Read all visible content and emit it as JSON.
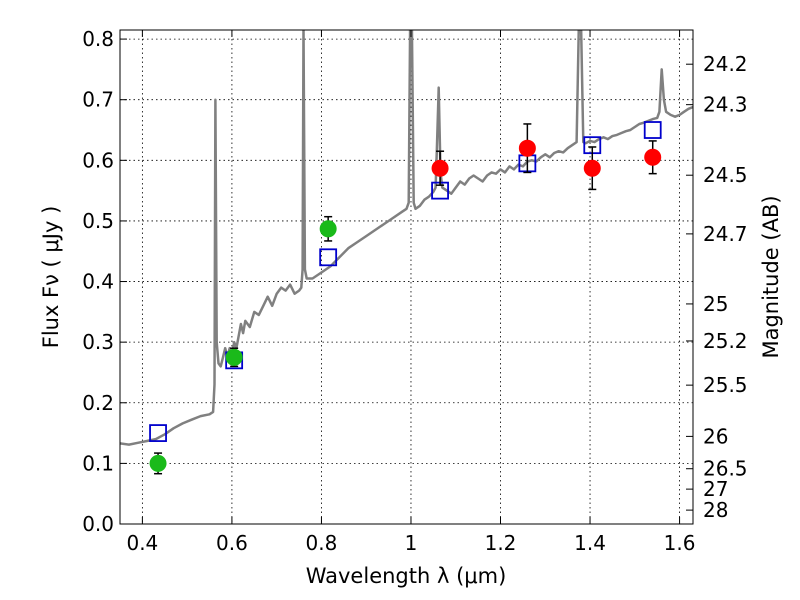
{
  "chart_data": {
    "type": "scatter",
    "xlabel": "Wavelength  λ (μm)",
    "ylabel": "Flux  Fν  ( μJy )",
    "ylabel_right": "Magnitude (AB)",
    "xlim": [
      0.35,
      1.63
    ],
    "ylim": [
      0.0,
      0.815
    ],
    "grid": true,
    "x_ticks": [
      {
        "value": 0.4,
        "label": "0.4"
      },
      {
        "value": 0.6,
        "label": "0.6"
      },
      {
        "value": 0.8,
        "label": "0.8"
      },
      {
        "value": 1.0,
        "label": "1"
      },
      {
        "value": 1.2,
        "label": "1.2"
      },
      {
        "value": 1.4,
        "label": "1.4"
      },
      {
        "value": 1.6,
        "label": "1.6"
      }
    ],
    "y_ticks": [
      {
        "value": 0.0,
        "label": "0.0"
      },
      {
        "value": 0.1,
        "label": "0.1"
      },
      {
        "value": 0.2,
        "label": "0.2"
      },
      {
        "value": 0.3,
        "label": "0.3"
      },
      {
        "value": 0.4,
        "label": "0.4"
      },
      {
        "value": 0.5,
        "label": "0.5"
      },
      {
        "value": 0.6,
        "label": "0.6"
      },
      {
        "value": 0.7,
        "label": "0.7"
      },
      {
        "value": 0.8,
        "label": "0.8"
      }
    ],
    "right_ticks": [
      {
        "mag": 24.2,
        "label": "24.2"
      },
      {
        "mag": 24.3,
        "label": "24.3"
      },
      {
        "mag": 24.5,
        "label": "24.5"
      },
      {
        "mag": 24.7,
        "label": "24.7"
      },
      {
        "mag": 25.0,
        "label": "25"
      },
      {
        "mag": 25.2,
        "label": "25.2"
      },
      {
        "mag": 25.5,
        "label": "25.5"
      },
      {
        "mag": 26.0,
        "label": "26"
      },
      {
        "mag": 26.5,
        "label": "26.5"
      },
      {
        "mag": 27.0,
        "label": "27"
      },
      {
        "mag": 28.0,
        "label": "28"
      }
    ],
    "series": [
      {
        "kind": "line",
        "color": "#808080",
        "points": [
          [
            0.35,
            0.133
          ],
          [
            0.37,
            0.131
          ],
          [
            0.39,
            0.134
          ],
          [
            0.41,
            0.137
          ],
          [
            0.43,
            0.14
          ],
          [
            0.45,
            0.148
          ],
          [
            0.47,
            0.158
          ],
          [
            0.49,
            0.166
          ],
          [
            0.51,
            0.172
          ],
          [
            0.53,
            0.178
          ],
          [
            0.55,
            0.181
          ],
          [
            0.558,
            0.185
          ],
          [
            0.561,
            0.23
          ],
          [
            0.563,
            0.7
          ],
          [
            0.566,
            0.3
          ],
          [
            0.57,
            0.265
          ],
          [
            0.575,
            0.26
          ],
          [
            0.58,
            0.275
          ],
          [
            0.585,
            0.29
          ],
          [
            0.59,
            0.275
          ],
          [
            0.595,
            0.29
          ],
          [
            0.6,
            0.28
          ],
          [
            0.605,
            0.3
          ],
          [
            0.61,
            0.29
          ],
          [
            0.62,
            0.33
          ],
          [
            0.625,
            0.315
          ],
          [
            0.63,
            0.335
          ],
          [
            0.64,
            0.325
          ],
          [
            0.65,
            0.35
          ],
          [
            0.66,
            0.345
          ],
          [
            0.67,
            0.36
          ],
          [
            0.68,
            0.375
          ],
          [
            0.69,
            0.36
          ],
          [
            0.7,
            0.38
          ],
          [
            0.71,
            0.39
          ],
          [
            0.72,
            0.385
          ],
          [
            0.73,
            0.395
          ],
          [
            0.74,
            0.38
          ],
          [
            0.75,
            0.385
          ],
          [
            0.755,
            0.39
          ],
          [
            0.758,
            0.42
          ],
          [
            0.76,
            0.82
          ],
          [
            0.763,
            0.42
          ],
          [
            0.767,
            0.405
          ],
          [
            0.78,
            0.405
          ],
          [
            0.8,
            0.415
          ],
          [
            0.82,
            0.425
          ],
          [
            0.84,
            0.44
          ],
          [
            0.86,
            0.455
          ],
          [
            0.88,
            0.465
          ],
          [
            0.9,
            0.475
          ],
          [
            0.92,
            0.485
          ],
          [
            0.94,
            0.495
          ],
          [
            0.96,
            0.505
          ],
          [
            0.98,
            0.515
          ],
          [
            0.99,
            0.52
          ],
          [
            0.995,
            0.53
          ],
          [
            0.998,
            0.82
          ],
          [
            1.002,
            0.82
          ],
          [
            1.006,
            0.53
          ],
          [
            1.01,
            0.52
          ],
          [
            1.02,
            0.525
          ],
          [
            1.03,
            0.535
          ],
          [
            1.04,
            0.54
          ],
          [
            1.05,
            0.548
          ],
          [
            1.055,
            0.555
          ],
          [
            1.058,
            0.62
          ],
          [
            1.062,
            0.72
          ],
          [
            1.066,
            0.58
          ],
          [
            1.07,
            0.555
          ],
          [
            1.08,
            0.55
          ],
          [
            1.09,
            0.545
          ],
          [
            1.1,
            0.555
          ],
          [
            1.11,
            0.565
          ],
          [
            1.12,
            0.56
          ],
          [
            1.13,
            0.57
          ],
          [
            1.14,
            0.575
          ],
          [
            1.15,
            0.57
          ],
          [
            1.16,
            0.565
          ],
          [
            1.17,
            0.575
          ],
          [
            1.18,
            0.58
          ],
          [
            1.19,
            0.578
          ],
          [
            1.2,
            0.585
          ],
          [
            1.21,
            0.58
          ],
          [
            1.22,
            0.59
          ],
          [
            1.23,
            0.585
          ],
          [
            1.24,
            0.593
          ],
          [
            1.25,
            0.59
          ],
          [
            1.26,
            0.598
          ],
          [
            1.27,
            0.6
          ],
          [
            1.28,
            0.598
          ],
          [
            1.29,
            0.605
          ],
          [
            1.3,
            0.61
          ],
          [
            1.31,
            0.605
          ],
          [
            1.32,
            0.612
          ],
          [
            1.33,
            0.615
          ],
          [
            1.34,
            0.613
          ],
          [
            1.35,
            0.62
          ],
          [
            1.36,
            0.625
          ],
          [
            1.37,
            0.63
          ],
          [
            1.375,
            0.82
          ],
          [
            1.38,
            0.82
          ],
          [
            1.385,
            0.63
          ],
          [
            1.39,
            0.628
          ],
          [
            1.4,
            0.632
          ],
          [
            1.41,
            0.63
          ],
          [
            1.42,
            0.635
          ],
          [
            1.43,
            0.638
          ],
          [
            1.44,
            0.635
          ],
          [
            1.45,
            0.64
          ],
          [
            1.46,
            0.642
          ],
          [
            1.47,
            0.645
          ],
          [
            1.48,
            0.648
          ],
          [
            1.49,
            0.65
          ],
          [
            1.5,
            0.655
          ],
          [
            1.51,
            0.66
          ],
          [
            1.52,
            0.662
          ],
          [
            1.53,
            0.665
          ],
          [
            1.54,
            0.668
          ],
          [
            1.55,
            0.67
          ],
          [
            1.555,
            0.68
          ],
          [
            1.56,
            0.75
          ],
          [
            1.565,
            0.7
          ],
          [
            1.57,
            0.68
          ],
          [
            1.58,
            0.675
          ],
          [
            1.59,
            0.672
          ],
          [
            1.6,
            0.675
          ],
          [
            1.61,
            0.68
          ],
          [
            1.62,
            0.685
          ],
          [
            1.63,
            0.688
          ]
        ]
      },
      {
        "kind": "square",
        "color": "#0000cc",
        "points": [
          [
            0.435,
            0.15
          ],
          [
            0.605,
            0.27
          ],
          [
            0.815,
            0.44
          ],
          [
            1.065,
            0.55
          ],
          [
            1.26,
            0.595
          ],
          [
            1.405,
            0.625
          ],
          [
            1.54,
            0.65
          ]
        ]
      },
      {
        "kind": "circle",
        "color": "#1aba1a",
        "points": [
          {
            "x": 0.435,
            "y": 0.1,
            "err": 0.017
          },
          {
            "x": 0.605,
            "y": 0.275,
            "err": 0.015
          },
          {
            "x": 0.815,
            "y": 0.487,
            "err": 0.02
          }
        ]
      },
      {
        "kind": "circle",
        "color": "#ff0000",
        "points": [
          {
            "x": 1.065,
            "y": 0.587,
            "err": 0.028
          },
          {
            "x": 1.26,
            "y": 0.62,
            "err": 0.04
          },
          {
            "x": 1.405,
            "y": 0.587,
            "err": 0.035
          },
          {
            "x": 1.54,
            "y": 0.605,
            "err": 0.027
          }
        ]
      }
    ]
  }
}
